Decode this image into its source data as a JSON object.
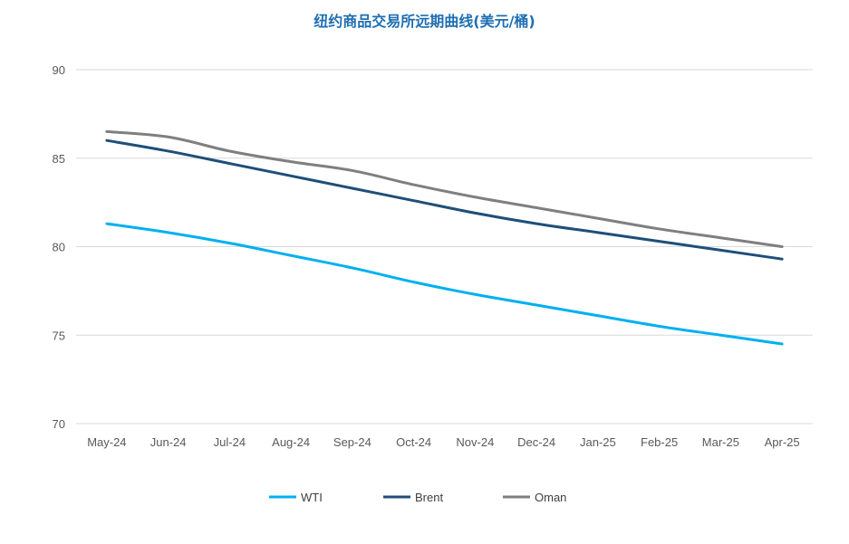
{
  "chart_data": {
    "type": "line",
    "title": "纽约商品交易所远期曲线(美元/桶)",
    "xlabel": "",
    "ylabel": "",
    "categories": [
      "May-24",
      "Jun-24",
      "Jul-24",
      "Aug-24",
      "Sep-24",
      "Oct-24",
      "Nov-24",
      "Dec-24",
      "Jan-25",
      "Feb-25",
      "Mar-25",
      "Apr-25"
    ],
    "ylim": [
      70,
      90
    ],
    "yticks": [
      70,
      75,
      80,
      85,
      90
    ],
    "grid": true,
    "legend_position": "bottom",
    "series": [
      {
        "name": "WTI",
        "color": "#00b0f0",
        "values": [
          81.3,
          80.8,
          80.2,
          79.5,
          78.8,
          78.0,
          77.3,
          76.7,
          76.1,
          75.5,
          75.0,
          74.5
        ]
      },
      {
        "name": "Brent",
        "color": "#1f4e79",
        "values": [
          86.0,
          85.4,
          84.7,
          84.0,
          83.3,
          82.6,
          81.9,
          81.3,
          80.8,
          80.3,
          79.8,
          79.3
        ]
      },
      {
        "name": "Oman",
        "color": "#7f7f7f",
        "values": [
          86.5,
          86.2,
          85.4,
          84.8,
          84.3,
          83.5,
          82.8,
          82.2,
          81.6,
          81.0,
          80.5,
          80.0
        ]
      }
    ]
  }
}
